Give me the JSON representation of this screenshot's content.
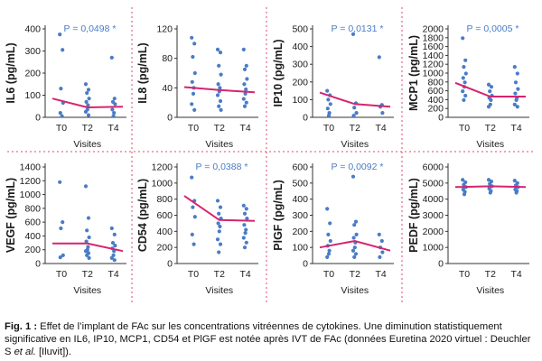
{
  "figure": {
    "background": "#ffffff",
    "divider_color": "#e0486a"
  },
  "style": {
    "point_color": "#4a7cc7",
    "line_color": "#d6246e",
    "pvalue_color": "#4a7cc7"
  },
  "chart_data": [
    {
      "type": "scatter",
      "id": "il6",
      "ylabel": "IL6 (pg/mL)",
      "xlabel": "Visites",
      "categories": [
        "T0",
        "T2",
        "T4"
      ],
      "ylim": [
        0,
        400
      ],
      "yticks": [
        0,
        100,
        200,
        300,
        400
      ],
      "pvalue": "P = 0,0498 *",
      "points": [
        [
          375,
          305,
          130,
          65,
          20,
          5
        ],
        [
          150,
          125,
          110,
          85,
          70,
          55,
          35,
          25,
          10
        ],
        [
          270,
          85,
          70,
          60,
          35,
          20,
          5
        ]
      ],
      "line": [
        85,
        45,
        48
      ]
    },
    {
      "type": "scatter",
      "id": "il8",
      "ylabel": "IL8 (pg/mL)",
      "xlabel": "Visites",
      "categories": [
        "T0",
        "T2",
        "T4"
      ],
      "ylim": [
        0,
        120
      ],
      "yticks": [
        0,
        40,
        80,
        120
      ],
      "pvalue": "",
      "points": [
        [
          108,
          100,
          82,
          60,
          48,
          40,
          32,
          18,
          10
        ],
        [
          92,
          88,
          70,
          58,
          45,
          40,
          35,
          30,
          22,
          15,
          10
        ],
        [
          92,
          70,
          65,
          52,
          45,
          38,
          32,
          25,
          20,
          15
        ]
      ],
      "line": [
        41,
        37,
        34
      ]
    },
    {
      "type": "scatter",
      "id": "ip10",
      "ylabel": "IP10 (pg/mL)",
      "xlabel": "Visites",
      "categories": [
        "T0",
        "T2",
        "T4"
      ],
      "ylim": [
        0,
        500
      ],
      "yticks": [
        0,
        100,
        200,
        300,
        400,
        500
      ],
      "pvalue": "P = 0,0131 *",
      "points": [
        [
          150,
          125,
          100,
          75,
          50,
          25,
          10
        ],
        [
          470,
          80,
          55,
          25,
          10
        ],
        [
          340,
          70,
          60,
          25
        ]
      ],
      "line": [
        140,
        75,
        60
      ]
    },
    {
      "type": "scatter",
      "id": "mcp1",
      "ylabel": "MCP1 (pg/mL)",
      "xlabel": "Visites",
      "categories": [
        "T0",
        "T2",
        "T4"
      ],
      "ylim": [
        0,
        2000
      ],
      "yticks": [
        0,
        200,
        400,
        600,
        800,
        1000,
        1200,
        1400,
        1600,
        1800,
        2000
      ],
      "pvalue": "P = 0,0005 *",
      "points": [
        [
          1790,
          1290,
          1140,
          990,
          890,
          790,
          690,
          590,
          490,
          390
        ],
        [
          740,
          690,
          590,
          490,
          440,
          390,
          290,
          240
        ],
        [
          1140,
          990,
          790,
          640,
          540,
          440,
          390,
          290,
          240
        ]
      ],
      "line": [
        780,
        470,
        470
      ]
    },
    {
      "type": "scatter",
      "id": "vegf",
      "ylabel": "VEGF (pg/mL)",
      "xlabel": "Visites",
      "categories": [
        "T0",
        "T2",
        "T4"
      ],
      "ylim": [
        0,
        1400
      ],
      "yticks": [
        0,
        200,
        400,
        600,
        800,
        1000,
        1200,
        1400
      ],
      "pvalue": "",
      "points": [
        [
          1180,
          600,
          510,
          120,
          90
        ],
        [
          1120,
          660,
          480,
          380,
          320,
          240,
          200,
          180,
          150,
          120,
          80
        ],
        [
          510,
          420,
          300,
          260,
          220,
          180,
          120,
          80,
          50
        ]
      ],
      "line": [
        290,
        290,
        180
      ]
    },
    {
      "type": "scatter",
      "id": "cd54",
      "ylabel": "CD54 (pg/mL)",
      "xlabel": "Visites",
      "categories": [
        "T0",
        "T2",
        "T4"
      ],
      "ylim": [
        0,
        1200
      ],
      "yticks": [
        0,
        200,
        400,
        600,
        800,
        1000,
        1200
      ],
      "pvalue": "P = 0,0388 *",
      "points": [
        [
          1070,
          780,
          700,
          580,
          360,
          240
        ],
        [
          780,
          700,
          620,
          560,
          500,
          460,
          400,
          300,
          240,
          140
        ],
        [
          720,
          680,
          620,
          560,
          480,
          420,
          380,
          320,
          260,
          200
        ]
      ],
      "line": [
        840,
        540,
        530
      ]
    },
    {
      "type": "scatter",
      "id": "pigf",
      "ylabel": "PlGF (pg/mL)",
      "xlabel": "Visites",
      "categories": [
        "T0",
        "T2",
        "T4"
      ],
      "ylim": [
        0,
        600
      ],
      "yticks": [
        0,
        100,
        200,
        300,
        400,
        500,
        600
      ],
      "pvalue": "P = 0,0092 *",
      "points": [
        [
          340,
          250,
          180,
          140,
          110,
          80,
          60,
          40
        ],
        [
          540,
          260,
          240,
          180,
          160,
          130,
          100,
          80,
          60,
          40
        ],
        [
          180,
          140,
          100,
          70,
          40
        ]
      ],
      "line": [
        100,
        140,
        80
      ]
    },
    {
      "type": "scatter",
      "id": "pedf",
      "ylabel": "PEDF (pg/mL)",
      "xlabel": "Visites",
      "categories": [
        "T0",
        "T2",
        "T4"
      ],
      "ylim": [
        0,
        6000
      ],
      "yticks": [
        0,
        1000,
        2000,
        3000,
        4000,
        5000,
        6000
      ],
      "pvalue": "",
      "points": [
        [
          5200,
          5050,
          4900,
          4750,
          4600,
          4450,
          4300
        ],
        [
          5200,
          5100,
          4950,
          4800,
          4650,
          4500,
          4400
        ],
        [
          5150,
          5000,
          4850,
          4750,
          4600,
          4500,
          4400
        ]
      ],
      "line": [
        4750,
        4800,
        4750
      ]
    }
  ],
  "caption": {
    "label": "Fig. 1 :",
    "text_before_italic": " Effet de l’implant de FAc sur les concentrations vitréennes de cytokines. Une diminution statistiquement significative en IL6, IP10, MCP1, CD54 et PlGF est notée après IVT de FAc (données Euretina 2020 virtuel : Deuchler S ",
    "italic": "et al.",
    "text_after_italic": " [Iluvit])."
  }
}
